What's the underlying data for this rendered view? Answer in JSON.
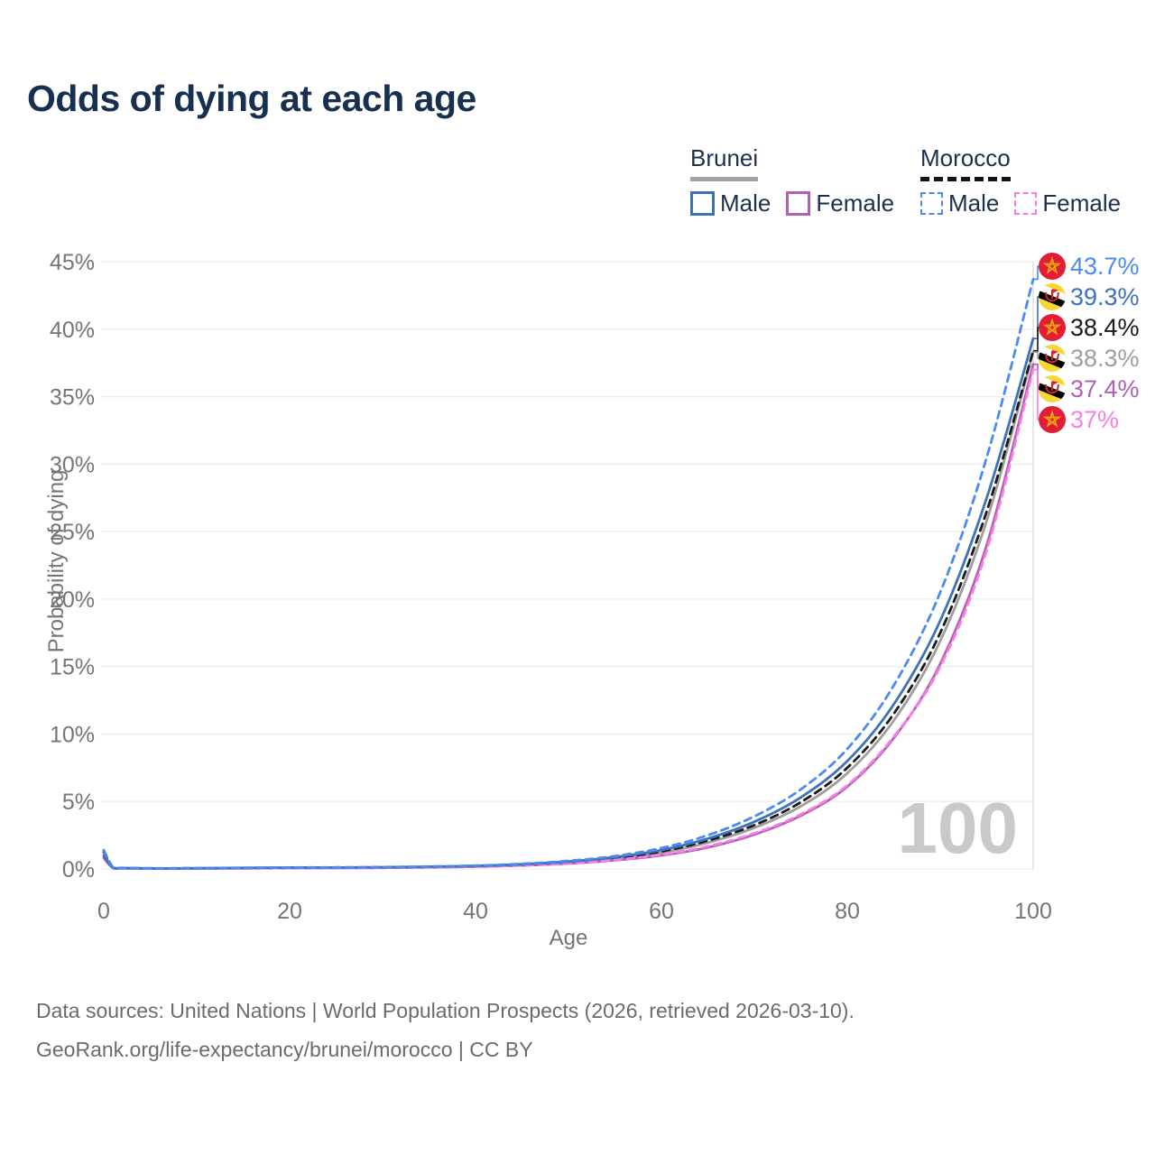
{
  "title": "Odds of dying at each age",
  "legend": {
    "groups": [
      {
        "id": "brunei",
        "label": "Brunei",
        "line_style": "solid",
        "underline_color": "#a3a3a3",
        "items": [
          {
            "label": "Male",
            "color": "#3d72ba"
          },
          {
            "label": "Female",
            "color": "#b05fb3"
          }
        ]
      },
      {
        "id": "morocco",
        "label": "Morocco",
        "line_style": "dashed",
        "underline_color": "#141414",
        "items": [
          {
            "label": "Male",
            "color": "#4a8af5"
          },
          {
            "label": "Female",
            "color": "#f97de6"
          }
        ]
      }
    ]
  },
  "footer": {
    "line1": "Data sources: United Nations | World Population Prospects (2026, retrieved 2026-03-10).",
    "line2": "GeoRank.org/life-expectancy/brunei/morocco | CC BY"
  },
  "chart_data": {
    "type": "line",
    "title": "Odds of dying at each age",
    "xlabel": "Age",
    "ylabel": "Probability of dying",
    "xlim": [
      0,
      100
    ],
    "ylim": [
      0,
      45
    ],
    "xticks": [
      0,
      20,
      40,
      60,
      80,
      100
    ],
    "yticks": [
      0,
      5,
      10,
      15,
      20,
      25,
      30,
      35,
      40,
      45
    ],
    "ytick_suffix": "%",
    "grid": "horizontal",
    "legend_position": "top-right",
    "hover_age": 100,
    "age_indicator_label": "100",
    "x": [
      0,
      1,
      2,
      5,
      10,
      15,
      20,
      25,
      30,
      35,
      40,
      45,
      50,
      55,
      60,
      65,
      70,
      75,
      80,
      85,
      90,
      95,
      100
    ],
    "series": [
      {
        "id": "morocco-male",
        "name": "Morocco Male",
        "country": "morocco",
        "sex": "male",
        "dash": true,
        "color": "#4a8af5",
        "end_label": "43.7%",
        "z": 6,
        "values": [
          1.4,
          0.12,
          0.08,
          0.05,
          0.06,
          0.09,
          0.11,
          0.12,
          0.14,
          0.18,
          0.25,
          0.38,
          0.6,
          0.95,
          1.55,
          2.5,
          3.9,
          5.9,
          8.9,
          13.6,
          20.5,
          30.5,
          43.7
        ]
      },
      {
        "id": "brunei-male",
        "name": "Brunei Male",
        "country": "brunei",
        "sex": "male",
        "dash": false,
        "color": "#3d72ba",
        "end_label": "39.3%",
        "z": 5,
        "values": [
          1.0,
          0.09,
          0.06,
          0.04,
          0.05,
          0.08,
          0.1,
          0.11,
          0.13,
          0.17,
          0.23,
          0.35,
          0.55,
          0.88,
          1.4,
          2.25,
          3.5,
          5.3,
          8.0,
          12.2,
          18.4,
          27.5,
          39.3
        ]
      },
      {
        "id": "morocco-both",
        "name": "Morocco",
        "country": "morocco",
        "sex": "both",
        "dash": true,
        "color": "#1a1a1a",
        "end_label": "38.4%",
        "z": 2,
        "values": [
          1.25,
          0.11,
          0.07,
          0.045,
          0.05,
          0.07,
          0.09,
          0.1,
          0.12,
          0.15,
          0.21,
          0.32,
          0.5,
          0.8,
          1.3,
          2.1,
          3.25,
          4.95,
          7.5,
          11.5,
          17.5,
          26.5,
          38.4
        ]
      },
      {
        "id": "brunei-both",
        "name": "Brunei",
        "country": "brunei",
        "sex": "both",
        "dash": false,
        "color": "#9e9e9e",
        "end_label": "38.3%",
        "z": 1,
        "values": [
          0.9,
          0.08,
          0.055,
          0.04,
          0.045,
          0.065,
          0.085,
          0.095,
          0.115,
          0.15,
          0.2,
          0.3,
          0.48,
          0.76,
          1.2,
          1.95,
          3.05,
          4.65,
          7.1,
          11.0,
          16.9,
          25.8,
          38.3
        ]
      },
      {
        "id": "brunei-female",
        "name": "Brunei Female",
        "country": "brunei",
        "sex": "female",
        "dash": false,
        "color": "#b05fb3",
        "end_label": "37.4%",
        "z": 3,
        "values": [
          0.8,
          0.07,
          0.05,
          0.03,
          0.04,
          0.05,
          0.06,
          0.07,
          0.09,
          0.12,
          0.17,
          0.26,
          0.4,
          0.64,
          1.0,
          1.6,
          2.55,
          3.95,
          6.1,
          9.7,
          15.2,
          24.0,
          37.4
        ]
      },
      {
        "id": "morocco-female",
        "name": "Morocco Female",
        "country": "morocco",
        "sex": "female",
        "dash": true,
        "color": "#f97de6",
        "end_label": "37%",
        "z": 4,
        "values": [
          1.1,
          0.1,
          0.06,
          0.04,
          0.045,
          0.055,
          0.065,
          0.075,
          0.095,
          0.125,
          0.18,
          0.27,
          0.42,
          0.67,
          1.05,
          1.68,
          2.65,
          4.05,
          6.2,
          9.8,
          15.0,
          23.6,
          37.0
        ]
      }
    ]
  }
}
